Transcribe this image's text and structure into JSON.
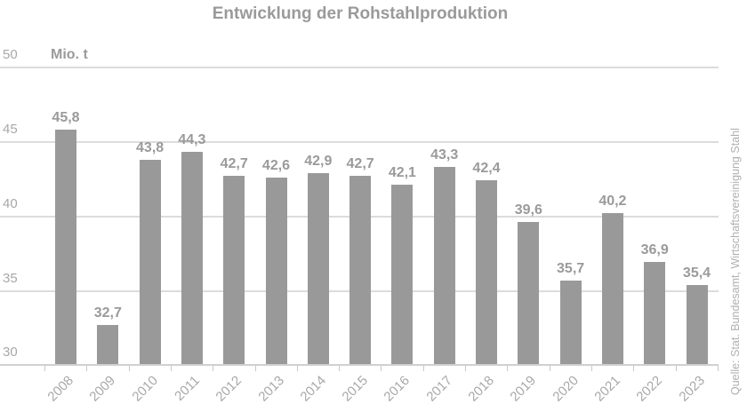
{
  "chart_data": {
    "type": "bar",
    "title": "Entwicklung der Rohstahlproduktion",
    "ylabel": "Mio. t",
    "xlabel": "",
    "ylim": [
      30,
      50
    ],
    "yticks": [
      "50",
      "45",
      "40",
      "35",
      "30"
    ],
    "grid": true,
    "categories": [
      "2008",
      "2009",
      "2010",
      "2011",
      "2012",
      "2013",
      "2014",
      "2015",
      "2016",
      "2017",
      "2018",
      "2019",
      "2020",
      "2021",
      "2022",
      "2023"
    ],
    "values": [
      45.8,
      32.7,
      43.8,
      44.3,
      42.7,
      42.6,
      42.9,
      42.7,
      42.1,
      43.3,
      42.4,
      39.6,
      35.7,
      40.2,
      36.9,
      35.4
    ],
    "value_labels": [
      "45,8",
      "32,7",
      "43,8",
      "44,3",
      "42,7",
      "42,6",
      "42,9",
      "42,7",
      "42,1",
      "43,3",
      "42,4",
      "39,6",
      "35,7",
      "40,2",
      "36,9",
      "35,4"
    ],
    "bar_color": "#999999",
    "source": "Quelle: Stat. Bundesamt, Wirtschaftsvereinigung Stahl"
  }
}
